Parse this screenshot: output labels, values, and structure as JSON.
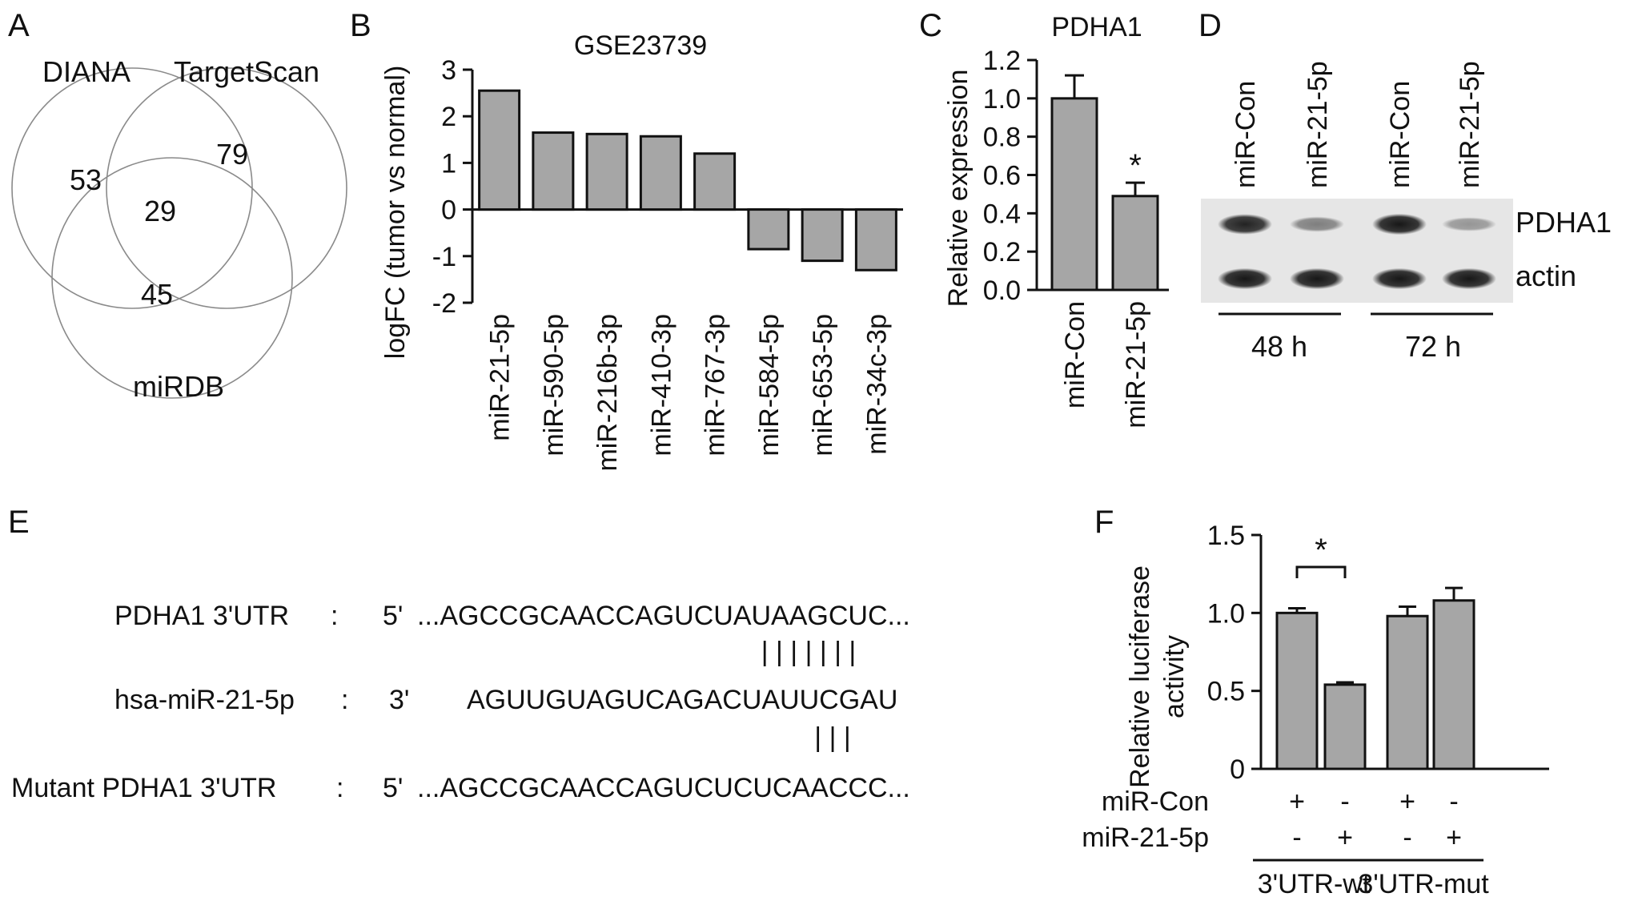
{
  "panels": {
    "a": "A",
    "b": "B",
    "c": "C",
    "d": "D",
    "e": "E",
    "f": "F"
  },
  "venn": {
    "sets": [
      "DIANA",
      "TargetScan",
      "miRDB"
    ],
    "counts": {
      "diana_only": "53",
      "targetscan_only": "79",
      "mirdb_only": "45",
      "all_three": "29"
    }
  },
  "chart_data": [
    {
      "id": "B",
      "type": "bar",
      "title": "GSE23739",
      "xlabel": "",
      "ylabel": "logFC (tumor vs normal)",
      "ylim": [
        -2,
        3
      ],
      "yticks": [
        -2,
        -1,
        0,
        1,
        2,
        3
      ],
      "categories": [
        "miR-21-5p",
        "miR-590-5p",
        "miR-216b-3p",
        "miR-410-3p",
        "miR-767-3p",
        "miR-584-5p",
        "miR-653-5p",
        "miR-34c-3p"
      ],
      "values": [
        2.55,
        1.65,
        1.62,
        1.57,
        1.2,
        -0.85,
        -1.1,
        -1.3
      ],
      "grid": false,
      "bar_color": "#a6a6a6"
    },
    {
      "id": "C",
      "type": "bar",
      "title": "PDHA1",
      "xlabel": "",
      "ylabel": "Relative expression",
      "ylim": [
        0,
        1.2
      ],
      "yticks": [
        0.0,
        0.2,
        0.4,
        0.6,
        0.8,
        1.0,
        1.2
      ],
      "categories": [
        "miR-Con",
        "miR-21-5p"
      ],
      "values": [
        1.0,
        0.49
      ],
      "errors": [
        0.12,
        0.07
      ],
      "significance": [
        {
          "over": 1,
          "label": "*"
        }
      ],
      "grid": false,
      "bar_color": "#a6a6a6"
    },
    {
      "id": "F",
      "type": "bar",
      "title": "",
      "xlabel": "",
      "ylabel_lines": [
        "Relative luciferase",
        "activity"
      ],
      "ylim": [
        0,
        1.5
      ],
      "yticks": [
        0,
        0.5,
        1.0,
        1.5
      ],
      "values": [
        1.0,
        0.54,
        0.98,
        1.08
      ],
      "errors": [
        0.03,
        0.015,
        0.06,
        0.08
      ],
      "significance": [
        {
          "between": [
            0,
            1
          ],
          "label": "*"
        }
      ],
      "conditions": [
        {
          "label": "miR-Con",
          "marks": [
            "+",
            "-",
            "+",
            "-"
          ]
        },
        {
          "label": "miR-21-5p",
          "marks": [
            "-",
            "+",
            "-",
            "+"
          ]
        }
      ],
      "groups": [
        {
          "label": "3'UTR-wt",
          "bars": [
            0,
            1
          ]
        },
        {
          "label": "3'UTR-mut",
          "bars": [
            2,
            3
          ]
        }
      ],
      "grid": false,
      "bar_color": "#a6a6a6"
    }
  ],
  "western": {
    "lanes": [
      "miR-Con",
      "miR-21-5p",
      "miR-Con",
      "miR-21-5p"
    ],
    "rows": [
      {
        "label": "PDHA1",
        "intensity": [
          0.85,
          0.45,
          0.9,
          0.35
        ]
      },
      {
        "label": "actin",
        "intensity": [
          0.9,
          0.9,
          0.9,
          0.9
        ]
      }
    ],
    "timepoints": [
      "48 h",
      "72 h"
    ]
  },
  "sequences": {
    "rows": [
      {
        "name": "PDHA1 3'UTR",
        "sep": ":",
        "end": "5'",
        "seq": "...AGCCGCAACCAGUCUAUAAGCUC..."
      },
      {
        "name": "hsa-miR-21-5p",
        "sep": ":",
        "end": "3'",
        "seq": "AGUUGUAGUCAGACUAUUCGAU"
      },
      {
        "name": "Mutant PDHA1 3'UTR",
        "sep": ":",
        "end": "5'",
        "seq": "...AGCCGCAACCAGUCUCUCAACCC..."
      }
    ],
    "pairing_top": "| | | | | | |",
    "pairing_bottom": "|    |    |"
  }
}
